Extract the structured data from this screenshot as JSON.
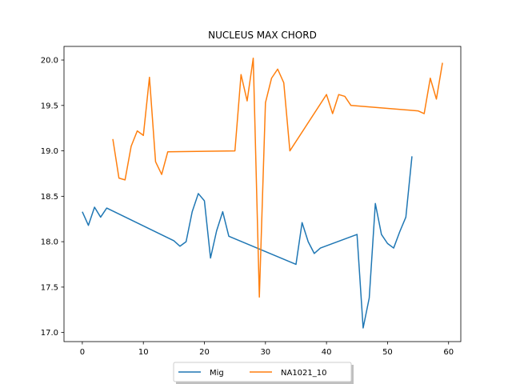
{
  "chart_data": {
    "type": "line",
    "title": "NUCLEUS MAX CHORD",
    "xlabel": "",
    "ylabel": "",
    "xlim": [
      -3,
      62
    ],
    "ylim": [
      16.9,
      20.15
    ],
    "xticks": [
      0,
      10,
      20,
      30,
      40,
      50,
      60
    ],
    "yticks": [
      17.0,
      17.5,
      18.0,
      18.5,
      19.0,
      19.5,
      20.0
    ],
    "ytick_labels": [
      "17.0",
      "17.5",
      "18.0",
      "18.5",
      "19.0",
      "19.5",
      "20.0"
    ],
    "grid": false,
    "legend_placement": "bottom-center",
    "series": [
      {
        "name": "Mig",
        "color": "#1f77b4",
        "x": [
          0,
          1,
          2,
          3,
          4,
          15,
          16,
          17,
          18,
          19,
          20,
          21,
          22,
          23,
          24,
          35,
          36,
          37,
          38,
          39,
          45,
          46,
          47,
          48,
          49,
          50,
          51,
          52,
          53,
          54
        ],
        "y": [
          18.33,
          18.18,
          18.38,
          18.27,
          18.37,
          18.01,
          17.95,
          18.0,
          18.33,
          18.53,
          18.45,
          17.82,
          18.12,
          18.33,
          18.06,
          17.75,
          18.21,
          18.0,
          17.87,
          17.93,
          18.08,
          17.05,
          17.38,
          18.42,
          18.08,
          17.98,
          17.93,
          18.11,
          18.27,
          18.94
        ]
      },
      {
        "name": "NA1021_10",
        "color": "#ff7f0e",
        "x": [
          5,
          6,
          7,
          8,
          9,
          10,
          11,
          12,
          13,
          14,
          25,
          26,
          27,
          28,
          29,
          30,
          31,
          32,
          33,
          34,
          40,
          41,
          42,
          43,
          44,
          55,
          56,
          57,
          58,
          59
        ],
        "y": [
          19.13,
          18.7,
          18.68,
          19.05,
          19.22,
          19.17,
          19.81,
          18.88,
          18.74,
          18.99,
          19.0,
          19.84,
          19.55,
          20.02,
          17.39,
          19.53,
          19.8,
          19.9,
          19.75,
          19.0,
          19.62,
          19.41,
          19.62,
          19.6,
          19.5,
          19.44,
          19.41,
          19.8,
          19.57,
          19.97
        ]
      }
    ]
  }
}
